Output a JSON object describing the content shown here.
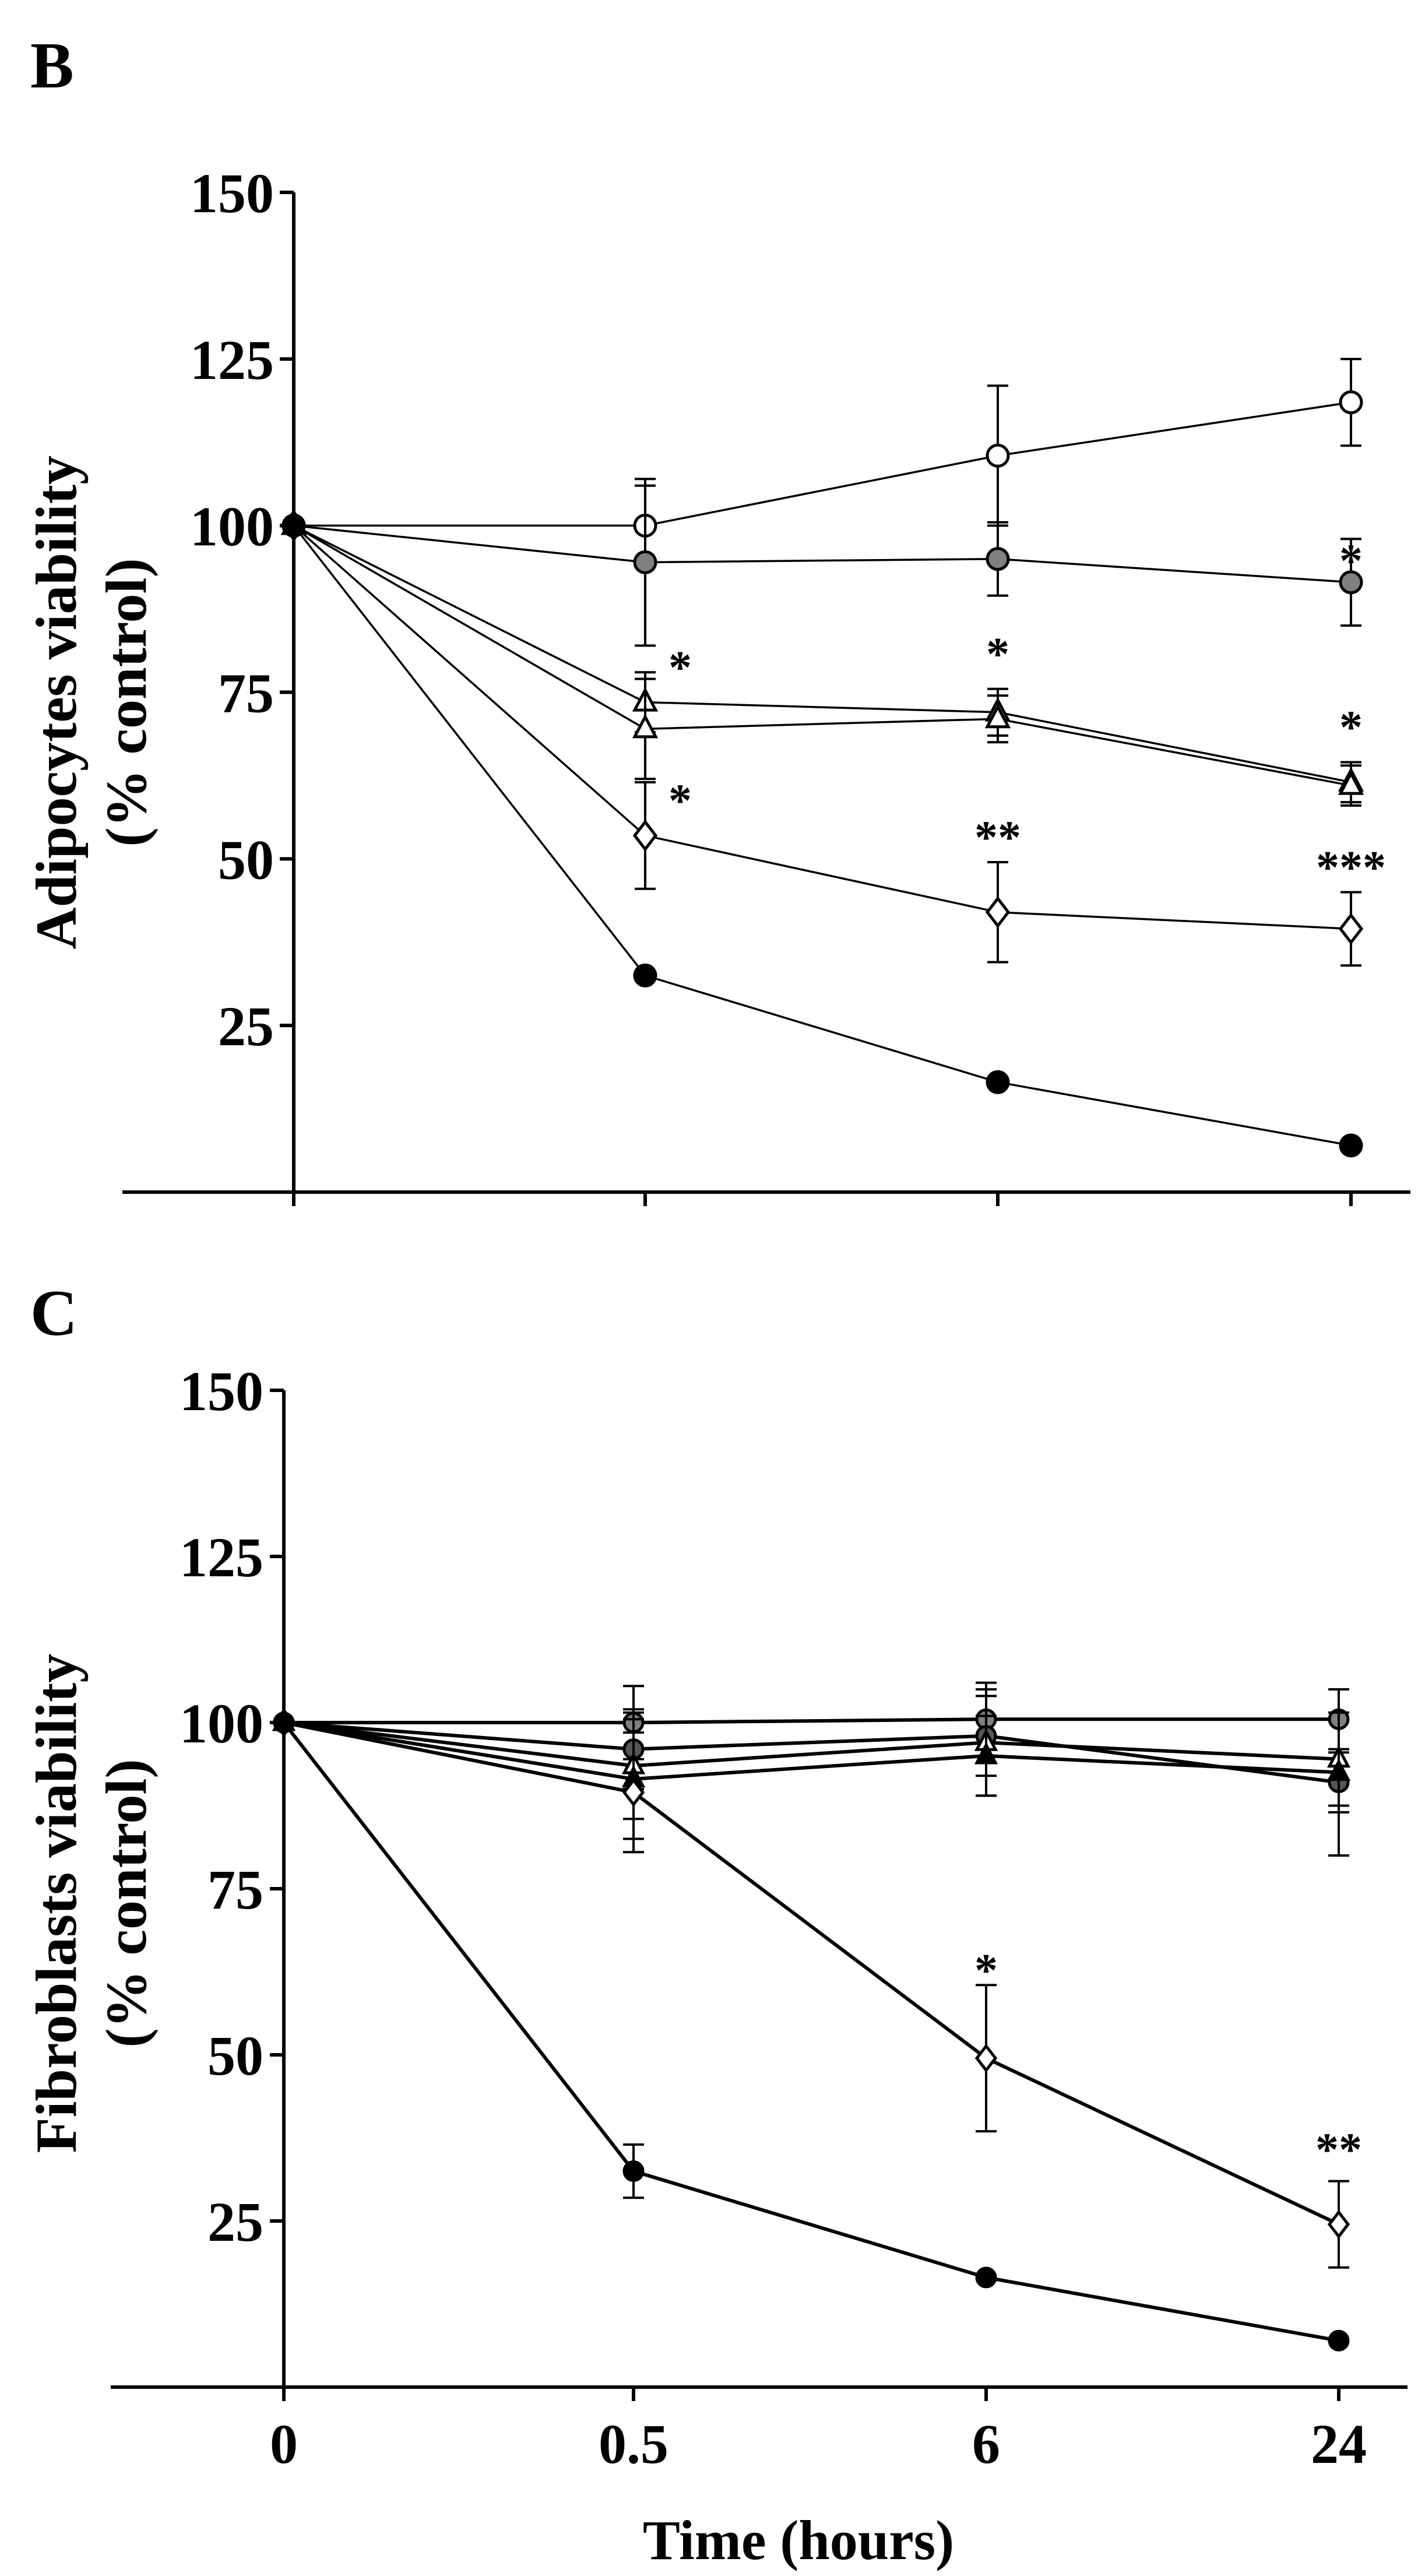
{
  "chart_data": [
    {
      "panel_label": "B",
      "type": "line",
      "ylabel_line1": "Adipocytes viability",
      "ylabel_line2": "(% control)",
      "ylim": [
        0,
        150
      ],
      "yticks": [
        "150",
        "125",
        "100",
        "75",
        "50",
        "25"
      ],
      "ytick_values": [
        150,
        125,
        100,
        75,
        50,
        25
      ],
      "x_positions": [
        0,
        1,
        2,
        3
      ],
      "series": [
        {
          "name": "open-circle",
          "marker": "circle",
          "fill": "#ffffff",
          "values": [
            100,
            100,
            110.5,
            118.5
          ],
          "errors": [
            0,
            6,
            10.5,
            6.5
          ]
        },
        {
          "name": "grey-circle",
          "marker": "circle",
          "fill": "#808080",
          "values": [
            100,
            94.5,
            95,
            91.5
          ],
          "errors": [
            0,
            12.5,
            5.5,
            6.5
          ]
        },
        {
          "name": "open-triangle-a",
          "marker": "triangle",
          "fill": "#ffffff",
          "values": [
            100,
            73.5,
            72,
            61.5
          ],
          "errors": [
            0,
            4.5,
            3.5,
            3
          ]
        },
        {
          "name": "open-triangle-b",
          "marker": "triangle",
          "fill": "#ffffff",
          "values": [
            100,
            69.5,
            71,
            61
          ],
          "errors": [
            0,
            7.5,
            3.5,
            3
          ]
        },
        {
          "name": "open-diamond",
          "marker": "diamond",
          "fill": "#ffffff",
          "values": [
            100,
            53.5,
            42,
            39.5
          ],
          "errors": [
            0,
            8,
            7.5,
            5.5
          ]
        },
        {
          "name": "black-circle",
          "marker": "circle",
          "fill": "#000000",
          "values": [
            100,
            32.5,
            16.5,
            7
          ],
          "errors": [
            0,
            0,
            0,
            0
          ]
        }
      ],
      "annotations": [
        {
          "text": "*",
          "x": 1,
          "y": 79
        },
        {
          "text": "*",
          "x": 1,
          "y": 59
        },
        {
          "text": "*",
          "x": 2,
          "y": 81
        },
        {
          "text": "**",
          "x": 2,
          "y": 53.5
        },
        {
          "text": "*",
          "x": 3,
          "y": 95
        },
        {
          "text": "*",
          "x": 3,
          "y": 70
        },
        {
          "text": "***",
          "x": 3,
          "y": 49
        }
      ]
    },
    {
      "panel_label": "C",
      "type": "line",
      "ylabel_line1": "Fibroblasts viability",
      "ylabel_line2": "(% control)",
      "ylim": [
        0,
        150
      ],
      "yticks": [
        "150",
        "125",
        "100",
        "75",
        "50",
        "25"
      ],
      "ytick_values": [
        150,
        125,
        100,
        75,
        50,
        25
      ],
      "xlabel": "Time (hours)",
      "categories": [
        "0",
        "0.5",
        "6",
        "24"
      ],
      "x_positions": [
        0,
        1,
        2,
        3
      ],
      "series": [
        {
          "name": "grey-circle",
          "marker": "circle",
          "fill": "#808080",
          "values": [
            100,
            100,
            100.5,
            100.5
          ],
          "errors": [
            0,
            5.5,
            5.5,
            4.5
          ]
        },
        {
          "name": "dark-circle",
          "marker": "circle",
          "fill": "#555555",
          "values": [
            100,
            96,
            98,
            91
          ],
          "errors": [
            0,
            6,
            6,
            4.5
          ]
        },
        {
          "name": "open-triangle",
          "marker": "triangle",
          "fill": "#ffffff",
          "values": [
            100,
            93.5,
            97,
            94.5
          ],
          "errors": [
            0,
            8,
            8,
            7
          ]
        },
        {
          "name": "black-triangle",
          "marker": "triangle",
          "fill": "#000000",
          "values": [
            100,
            91.5,
            95,
            92.5
          ],
          "errors": [
            0,
            9,
            6,
            12.5
          ]
        },
        {
          "name": "open-diamond",
          "marker": "diamond",
          "fill": "#ffffff",
          "values": [
            100,
            89.5,
            49.5,
            24.5
          ],
          "errors": [
            0,
            9,
            11,
            6.5
          ]
        },
        {
          "name": "black-circle",
          "marker": "circle",
          "fill": "#000000",
          "values": [
            100,
            32.5,
            16.5,
            7
          ],
          "errors": [
            0,
            4,
            0,
            0
          ]
        }
      ],
      "annotations": [
        {
          "text": "*",
          "x": 2,
          "y": 63
        },
        {
          "text": "**",
          "x": 3,
          "y": 36
        }
      ]
    }
  ]
}
